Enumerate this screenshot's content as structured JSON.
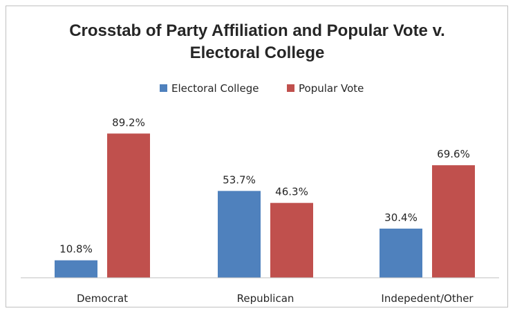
{
  "chart_data": {
    "type": "bar",
    "title_lines": [
      "Crosstab of Party Affiliation and Popular Vote v.",
      "Electoral College"
    ],
    "categories": [
      "Democrat",
      "Republican",
      "Indepedent/Other"
    ],
    "series": [
      {
        "name": "Electoral College",
        "values": [
          10.8,
          53.7,
          30.4
        ],
        "labels": [
          "10.8%",
          "53.7%",
          "30.4%"
        ],
        "color": "#4f81bd"
      },
      {
        "name": "Popular Vote",
        "values": [
          89.2,
          46.3,
          69.6
        ],
        "labels": [
          "89.2%",
          "46.3%",
          "69.6%"
        ],
        "color": "#c0504d"
      }
    ],
    "ylim": [
      0,
      100
    ],
    "grid": false,
    "legend": "top-center",
    "xlabel": "",
    "ylabel": ""
  }
}
